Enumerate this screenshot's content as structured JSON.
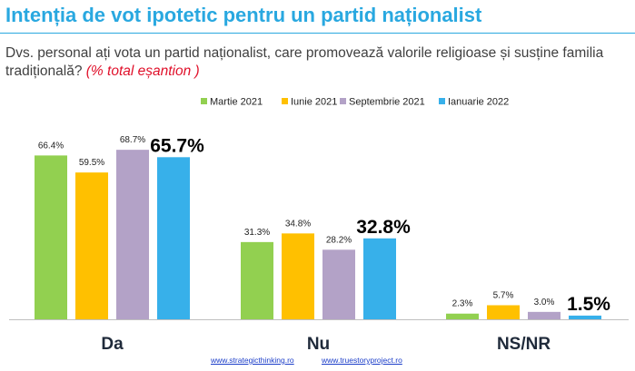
{
  "title": "Intenția de vot ipotetic pentru un partid naționalist",
  "question": {
    "text": "Dvs. personal ați vota un partid naționalist, care promovează valorile religioase și susține familia tradițională?",
    "note": "(% total eșantion )"
  },
  "colors": {
    "title": "#29a8e0",
    "series": [
      "#92d050",
      "#ffc000",
      "#b3a2c7",
      "#37b0ea"
    ]
  },
  "chart_data": {
    "type": "bar",
    "categories": [
      "Da",
      "Nu",
      "NS/NR"
    ],
    "series": [
      {
        "name": "Martie 2021",
        "values": [
          66.4,
          31.3,
          2.3
        ],
        "labels": [
          "66.4%",
          "31.3%",
          "2.3%"
        ]
      },
      {
        "name": "Iunie 2021",
        "values": [
          59.5,
          34.8,
          5.7
        ],
        "labels": [
          "59.5%",
          "34.8%",
          "5.7%"
        ]
      },
      {
        "name": "Septembrie 2021",
        "values": [
          68.7,
          28.2,
          3.0
        ],
        "labels": [
          "68.7%",
          "28.2%",
          "3.0%"
        ]
      },
      {
        "name": "Ianuarie 2022",
        "values": [
          65.7,
          32.8,
          1.5
        ],
        "labels": [
          "65.7%",
          "32.8%",
          "1.5%"
        ]
      }
    ],
    "ylim": [
      0,
      100
    ],
    "legend": "top",
    "grid": false
  },
  "footer": {
    "link1": "www.strategicthinking.ro",
    "link2": "www.truestoryproject.ro"
  }
}
